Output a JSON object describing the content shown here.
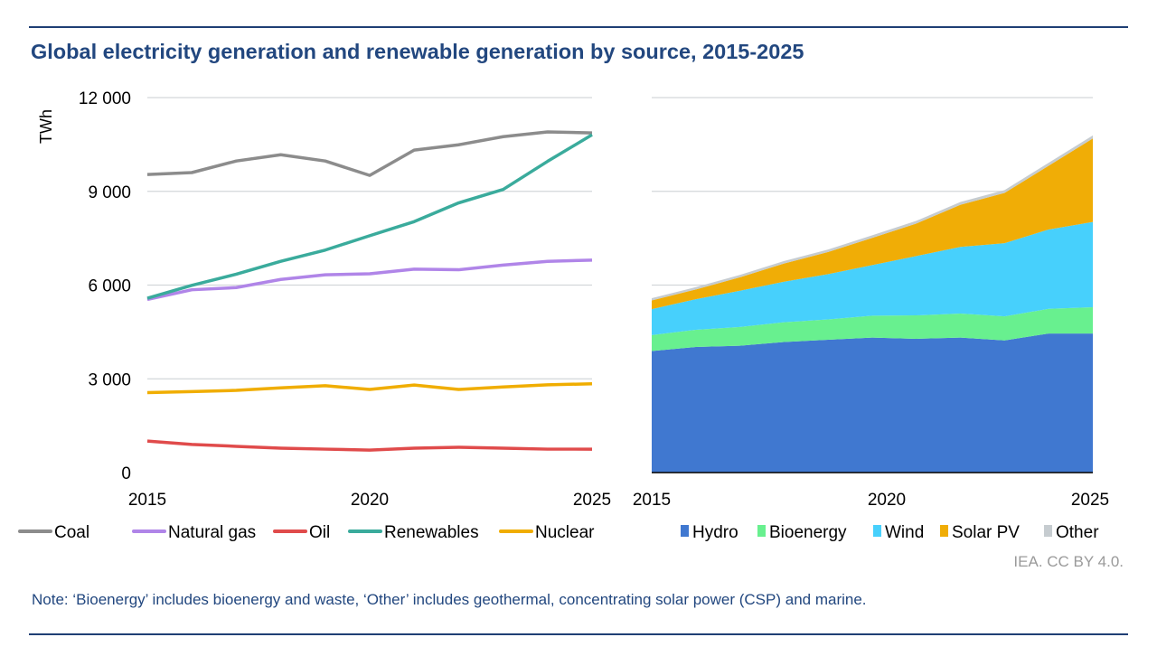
{
  "title": "Global electricity generation and renewable generation by source, 2015-2025",
  "note": "Note: ‘Bioenergy’ includes bioenergy and waste, ‘Other’ includes geothermal, concentrating solar power (CSP) and marine.",
  "credit": "IEA. CC BY 4.0.",
  "chart_data": [
    {
      "type": "line",
      "ylabel": "TWh",
      "ylim": [
        0,
        12000
      ],
      "yticks": [
        "0",
        "3 000",
        "6 000",
        "9 000",
        "12 000"
      ],
      "ytick_values": [
        0,
        3000,
        6000,
        9000,
        12000
      ],
      "xticks": [
        "2015",
        "2020",
        "2025"
      ],
      "x": [
        2015,
        2016,
        2017,
        2018,
        2019,
        2020,
        2021,
        2022,
        2023,
        2024,
        2025
      ],
      "grid": true,
      "legend": "bottom",
      "series": [
        {
          "name": "Coal",
          "color": "#8c8c8c",
          "values": [
            9540,
            9600,
            9970,
            10170,
            9970,
            9510,
            10320,
            10490,
            10750,
            10900,
            10870
          ]
        },
        {
          "name": "Natural gas",
          "color": "#b085e8",
          "values": [
            5540,
            5850,
            5920,
            6180,
            6330,
            6360,
            6510,
            6490,
            6640,
            6760,
            6800
          ]
        },
        {
          "name": "Oil",
          "color": "#e04b4b",
          "values": [
            1010,
            900,
            840,
            780,
            750,
            720,
            780,
            810,
            780,
            750,
            750
          ]
        },
        {
          "name": "Renewables",
          "color": "#3aab9c",
          "values": [
            5580,
            5990,
            6350,
            6760,
            7120,
            7580,
            8030,
            8630,
            9060,
            9960,
            10810
          ]
        },
        {
          "name": "Nuclear",
          "color": "#f0ad00",
          "values": [
            2560,
            2590,
            2630,
            2710,
            2780,
            2660,
            2800,
            2660,
            2740,
            2810,
            2840
          ]
        }
      ]
    },
    {
      "type": "area",
      "stacked": true,
      "ylim": [
        0,
        12000
      ],
      "xticks": [
        "2015",
        "2020",
        "2025"
      ],
      "x": [
        2015,
        2016,
        2017,
        2018,
        2019,
        2020,
        2021,
        2022,
        2023,
        2024,
        2025
      ],
      "grid": true,
      "legend": "bottom",
      "series": [
        {
          "name": "Hydro",
          "color": "#4078d0",
          "values": [
            3890,
            4020,
            4060,
            4180,
            4250,
            4320,
            4280,
            4320,
            4230,
            4450,
            4450
          ]
        },
        {
          "name": "Bioenergy",
          "color": "#68f08f",
          "values": [
            510,
            550,
            600,
            630,
            650,
            700,
            750,
            770,
            770,
            790,
            840
          ]
        },
        {
          "name": "Wind",
          "color": "#47d0fc",
          "values": [
            830,
            980,
            1160,
            1300,
            1450,
            1620,
            1900,
            2130,
            2340,
            2540,
            2730
          ]
        },
        {
          "name": "Solar PV",
          "color": "#f0ad06",
          "values": [
            280,
            310,
            430,
            580,
            710,
            870,
            1040,
            1350,
            1610,
            2040,
            2670
          ]
        },
        {
          "name": "Other",
          "color": "#c6ccd0",
          "values": [
            70,
            75,
            75,
            80,
            80,
            85,
            85,
            90,
            90,
            95,
            100
          ]
        }
      ]
    }
  ]
}
